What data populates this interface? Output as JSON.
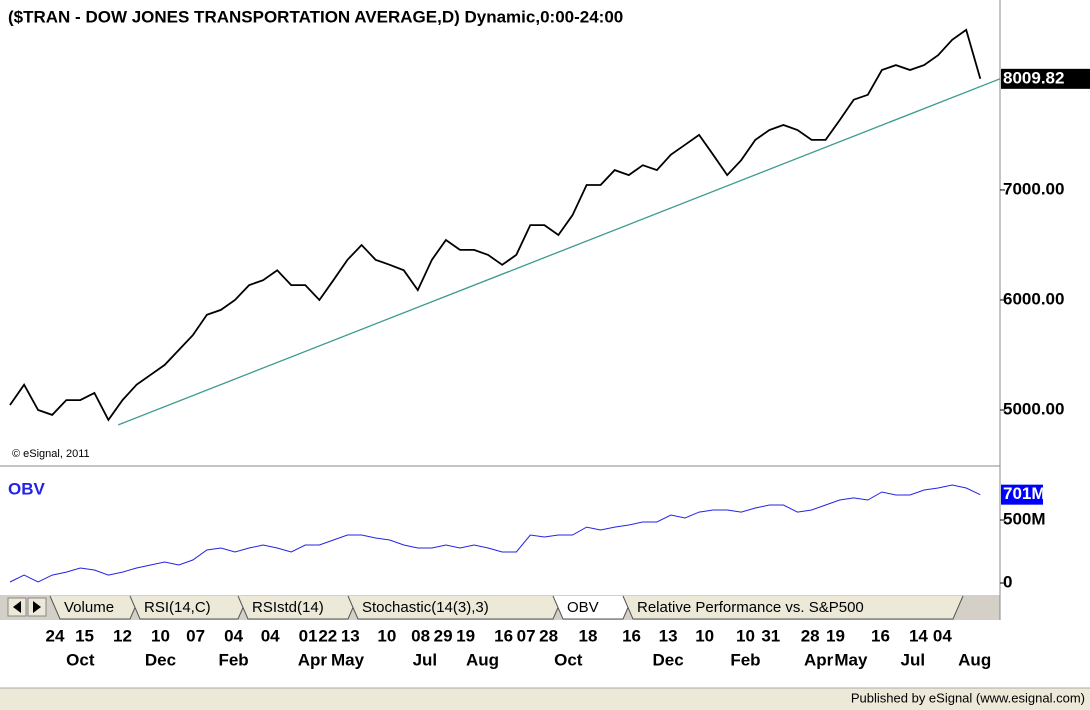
{
  "chart_data": [
    {
      "type": "line",
      "title": "($TRAN - DOW JONES TRANSPORTATION AVERAGE,D) Dynamic,0:00-24:00",
      "annotation": "© eSignal, 2011",
      "ylim": [
        4500,
        8590
      ],
      "yticks": [
        {
          "value": 5000,
          "label": "5000.00"
        },
        {
          "value": 6000,
          "label": "6000.00"
        },
        {
          "value": 7000,
          "label": "7000.00"
        }
      ],
      "series": [
        {
          "name": "$TRAN",
          "color": "#000000",
          "values": [
            5045,
            5230,
            5000,
            4955,
            5090,
            5090,
            5155,
            4910,
            5090,
            5230,
            5320,
            5410,
            5545,
            5680,
            5865,
            5910,
            6000,
            6135,
            6180,
            6270,
            6135,
            6135,
            6000,
            6180,
            6365,
            6500,
            6365,
            6320,
            6270,
            6090,
            6365,
            6545,
            6455,
            6455,
            6410,
            6320,
            6410,
            6680,
            6680,
            6590,
            6770,
            7045,
            7045,
            7180,
            7135,
            7225,
            7180,
            7320,
            7410,
            7500,
            7320,
            7135,
            7270,
            7455,
            7545,
            7590,
            7545,
            7455,
            7455,
            7635,
            7820,
            7865,
            8090,
            8135,
            8090,
            8135,
            8225,
            8365,
            8455,
            8009.82
          ]
        }
      ],
      "trendline": {
        "color": "#3c9a8f",
        "x": [
          7.7,
          70.4
        ],
        "values": [
          4865,
          8010
        ]
      }
    },
    {
      "type": "line",
      "title": "OBV",
      "ylim": [
        -95,
        857
      ],
      "yticks": [
        0,
        {
          "value": 500,
          "label": "500M"
        }
      ],
      "series": [
        {
          "name": "OBV",
          "color": "#2323e6",
          "values": [
            8,
            63,
            8,
            63,
            87,
            119,
            103,
            63,
            87,
            119,
            143,
            167,
            143,
            183,
            262,
            278,
            246,
            278,
            302,
            278,
            246,
            302,
            302,
            341,
            381,
            381,
            357,
            341,
            302,
            278,
            278,
            302,
            278,
            302,
            278,
            246,
            246,
            381,
            365,
            381,
            381,
            444,
            421,
            444,
            460,
            484,
            484,
            540,
            516,
            563,
            579,
            579,
            563,
            595,
            619,
            619,
            563,
            579,
            619,
            659,
            675,
            659,
            722,
            698,
            698,
            738,
            754,
            778,
            754,
            701
          ],
          "value_labels": [
            null,
            null,
            null,
            null,
            null,
            null,
            null,
            null,
            null,
            null,
            null,
            null,
            null,
            null,
            null,
            null,
            null,
            null,
            null,
            null,
            null,
            null,
            null,
            null,
            null,
            null,
            null,
            null,
            null,
            null,
            null,
            null,
            null,
            null,
            null,
            null,
            null,
            null,
            null,
            null,
            null,
            null,
            null,
            null,
            null,
            null,
            null,
            null,
            null,
            null,
            null,
            null,
            null,
            null,
            null,
            null,
            null,
            null,
            null,
            null,
            null,
            null,
            null,
            null,
            null,
            null,
            null,
            null,
            null,
            "701M"
          ]
        }
      ]
    }
  ],
  "x_axis": {
    "xlim": [
      0,
      70.4
    ],
    "day_ticks": [
      {
        "value": 3.2,
        "label": "24"
      },
      {
        "value": 5.3,
        "label": "15"
      },
      {
        "value": 8.0,
        "label": "12"
      },
      {
        "value": 10.7,
        "label": "10"
      },
      {
        "value": 13.2,
        "label": "07"
      },
      {
        "value": 15.9,
        "label": "04"
      },
      {
        "value": 18.5,
        "label": "04"
      },
      {
        "value": 21.2,
        "label": "01"
      },
      {
        "value": 22.6,
        "label": "22"
      },
      {
        "value": 24.2,
        "label": "13"
      },
      {
        "value": 26.8,
        "label": "10"
      },
      {
        "value": 29.2,
        "label": "08"
      },
      {
        "value": 30.8,
        "label": "29"
      },
      {
        "value": 32.4,
        "label": "19"
      },
      {
        "value": 35.1,
        "label": "16"
      },
      {
        "value": 36.7,
        "label": "07"
      },
      {
        "value": 38.3,
        "label": "28"
      },
      {
        "value": 41.1,
        "label": "18"
      },
      {
        "value": 44.2,
        "label": "16"
      },
      {
        "value": 46.8,
        "label": "13"
      },
      {
        "value": 49.4,
        "label": "10"
      },
      {
        "value": 52.3,
        "label": "10"
      },
      {
        "value": 54.1,
        "label": "31"
      },
      {
        "value": 56.9,
        "label": "28"
      },
      {
        "value": 58.7,
        "label": "19"
      },
      {
        "value": 61.9,
        "label": "16"
      },
      {
        "value": 64.6,
        "label": "14"
      },
      {
        "value": 66.3,
        "label": "04"
      }
    ],
    "month_ticks": [
      {
        "value": 5.0,
        "label": "Oct"
      },
      {
        "value": 10.7,
        "label": "Dec"
      },
      {
        "value": 15.9,
        "label": "Feb"
      },
      {
        "value": 21.5,
        "label": "Apr"
      },
      {
        "value": 24.0,
        "label": "May"
      },
      {
        "value": 29.5,
        "label": "Jul"
      },
      {
        "value": 33.6,
        "label": "Aug"
      },
      {
        "value": 39.7,
        "label": "Oct"
      },
      {
        "value": 46.8,
        "label": "Dec"
      },
      {
        "value": 52.3,
        "label": "Feb"
      },
      {
        "value": 57.5,
        "label": "Apr"
      },
      {
        "value": 59.8,
        "label": "May"
      },
      {
        "value": 64.2,
        "label": "Jul"
      },
      {
        "value": 68.6,
        "label": "Aug"
      }
    ]
  },
  "tabs": [
    "Volume",
    "RSI(14,C)",
    "RSIstd(14)",
    "Stochastic(14(3),3)",
    "OBV",
    "Relative Performance vs. S&P500"
  ],
  "active_tab": 4,
  "footer": "Published by eSignal (www.esignal.com)"
}
